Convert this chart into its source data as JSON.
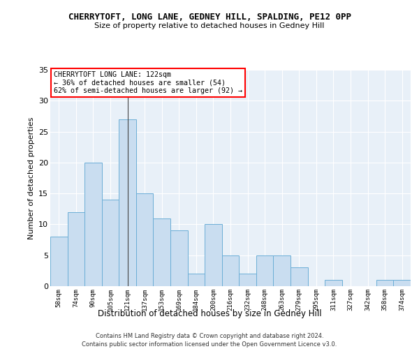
{
  "title": "CHERRYTOFT, LONG LANE, GEDNEY HILL, SPALDING, PE12 0PP",
  "subtitle": "Size of property relative to detached houses in Gedney Hill",
  "xlabel": "Distribution of detached houses by size in Gedney Hill",
  "ylabel": "Number of detached properties",
  "bar_color": "#c9ddf0",
  "bar_edge_color": "#6baed6",
  "bg_color": "#e8f0f8",
  "categories": [
    "58sqm",
    "74sqm",
    "90sqm",
    "105sqm",
    "121sqm",
    "137sqm",
    "153sqm",
    "169sqm",
    "184sqm",
    "200sqm",
    "216sqm",
    "232sqm",
    "248sqm",
    "263sqm",
    "279sqm",
    "295sqm",
    "311sqm",
    "327sqm",
    "342sqm",
    "358sqm",
    "374sqm"
  ],
  "values": [
    8,
    12,
    20,
    14,
    27,
    15,
    11,
    9,
    2,
    10,
    5,
    2,
    5,
    5,
    3,
    0,
    1,
    0,
    0,
    1,
    1
  ],
  "ylim": [
    0,
    35
  ],
  "yticks": [
    0,
    5,
    10,
    15,
    20,
    25,
    30,
    35
  ],
  "annotation_text": "CHERRYTOFT LONG LANE: 122sqm\n← 36% of detached houses are smaller (54)\n62% of semi-detached houses are larger (92) →",
  "vline_x": 4,
  "footer1": "Contains HM Land Registry data © Crown copyright and database right 2024.",
  "footer2": "Contains public sector information licensed under the Open Government Licence v3.0."
}
